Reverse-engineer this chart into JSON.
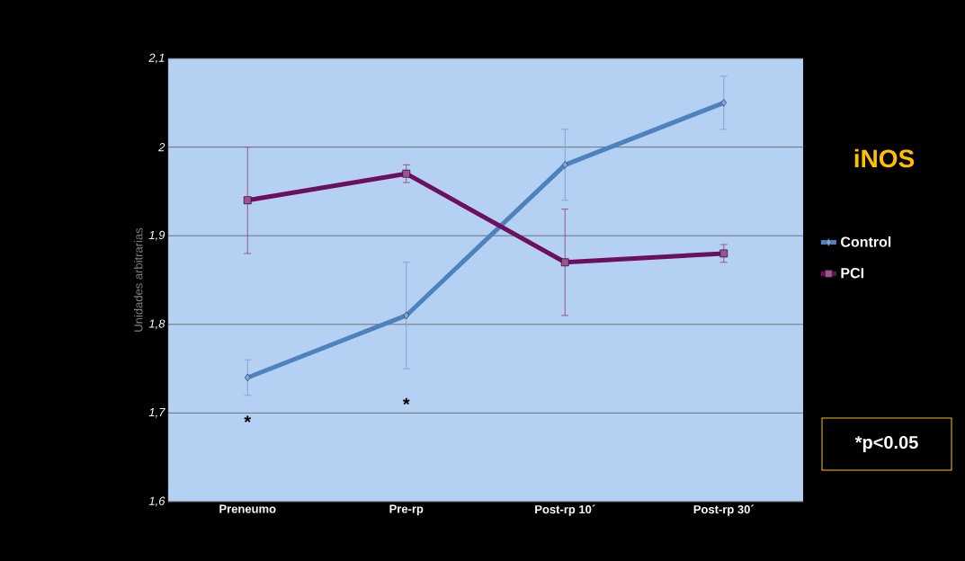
{
  "chart_data": {
    "type": "line",
    "title": "iNOS",
    "ylabel": "Unidades arbitrarias",
    "categories": [
      "Preneumo",
      "Pre-rp",
      "Post-rp 10´",
      "Post-rp 30´"
    ],
    "series": [
      {
        "name": "Control",
        "color": "#4f81bd",
        "marker": "diamond",
        "values": [
          1.74,
          1.81,
          1.98,
          2.05
        ],
        "errors": [
          0.02,
          0.06,
          0.04,
          0.03
        ]
      },
      {
        "name": "PCI",
        "color": "#6b0f5e",
        "marker": "square",
        "values": [
          1.94,
          1.97,
          1.87,
          1.88
        ],
        "errors": [
          0.06,
          0.01,
          0.06,
          0.01
        ]
      }
    ],
    "ylim": [
      1.6,
      2.1
    ],
    "yticks": [
      {
        "value": 1.6,
        "label": "1,6"
      },
      {
        "value": 1.7,
        "label": "1,7"
      },
      {
        "value": 1.8,
        "label": "1,8"
      },
      {
        "value": 1.9,
        "label": "1,9"
      },
      2,
      {
        "value": 2.1,
        "label": "2,1"
      }
    ],
    "grid": "y",
    "legend": "right",
    "annotations": [
      "*",
      "*",
      "*p<0.05"
    ]
  }
}
